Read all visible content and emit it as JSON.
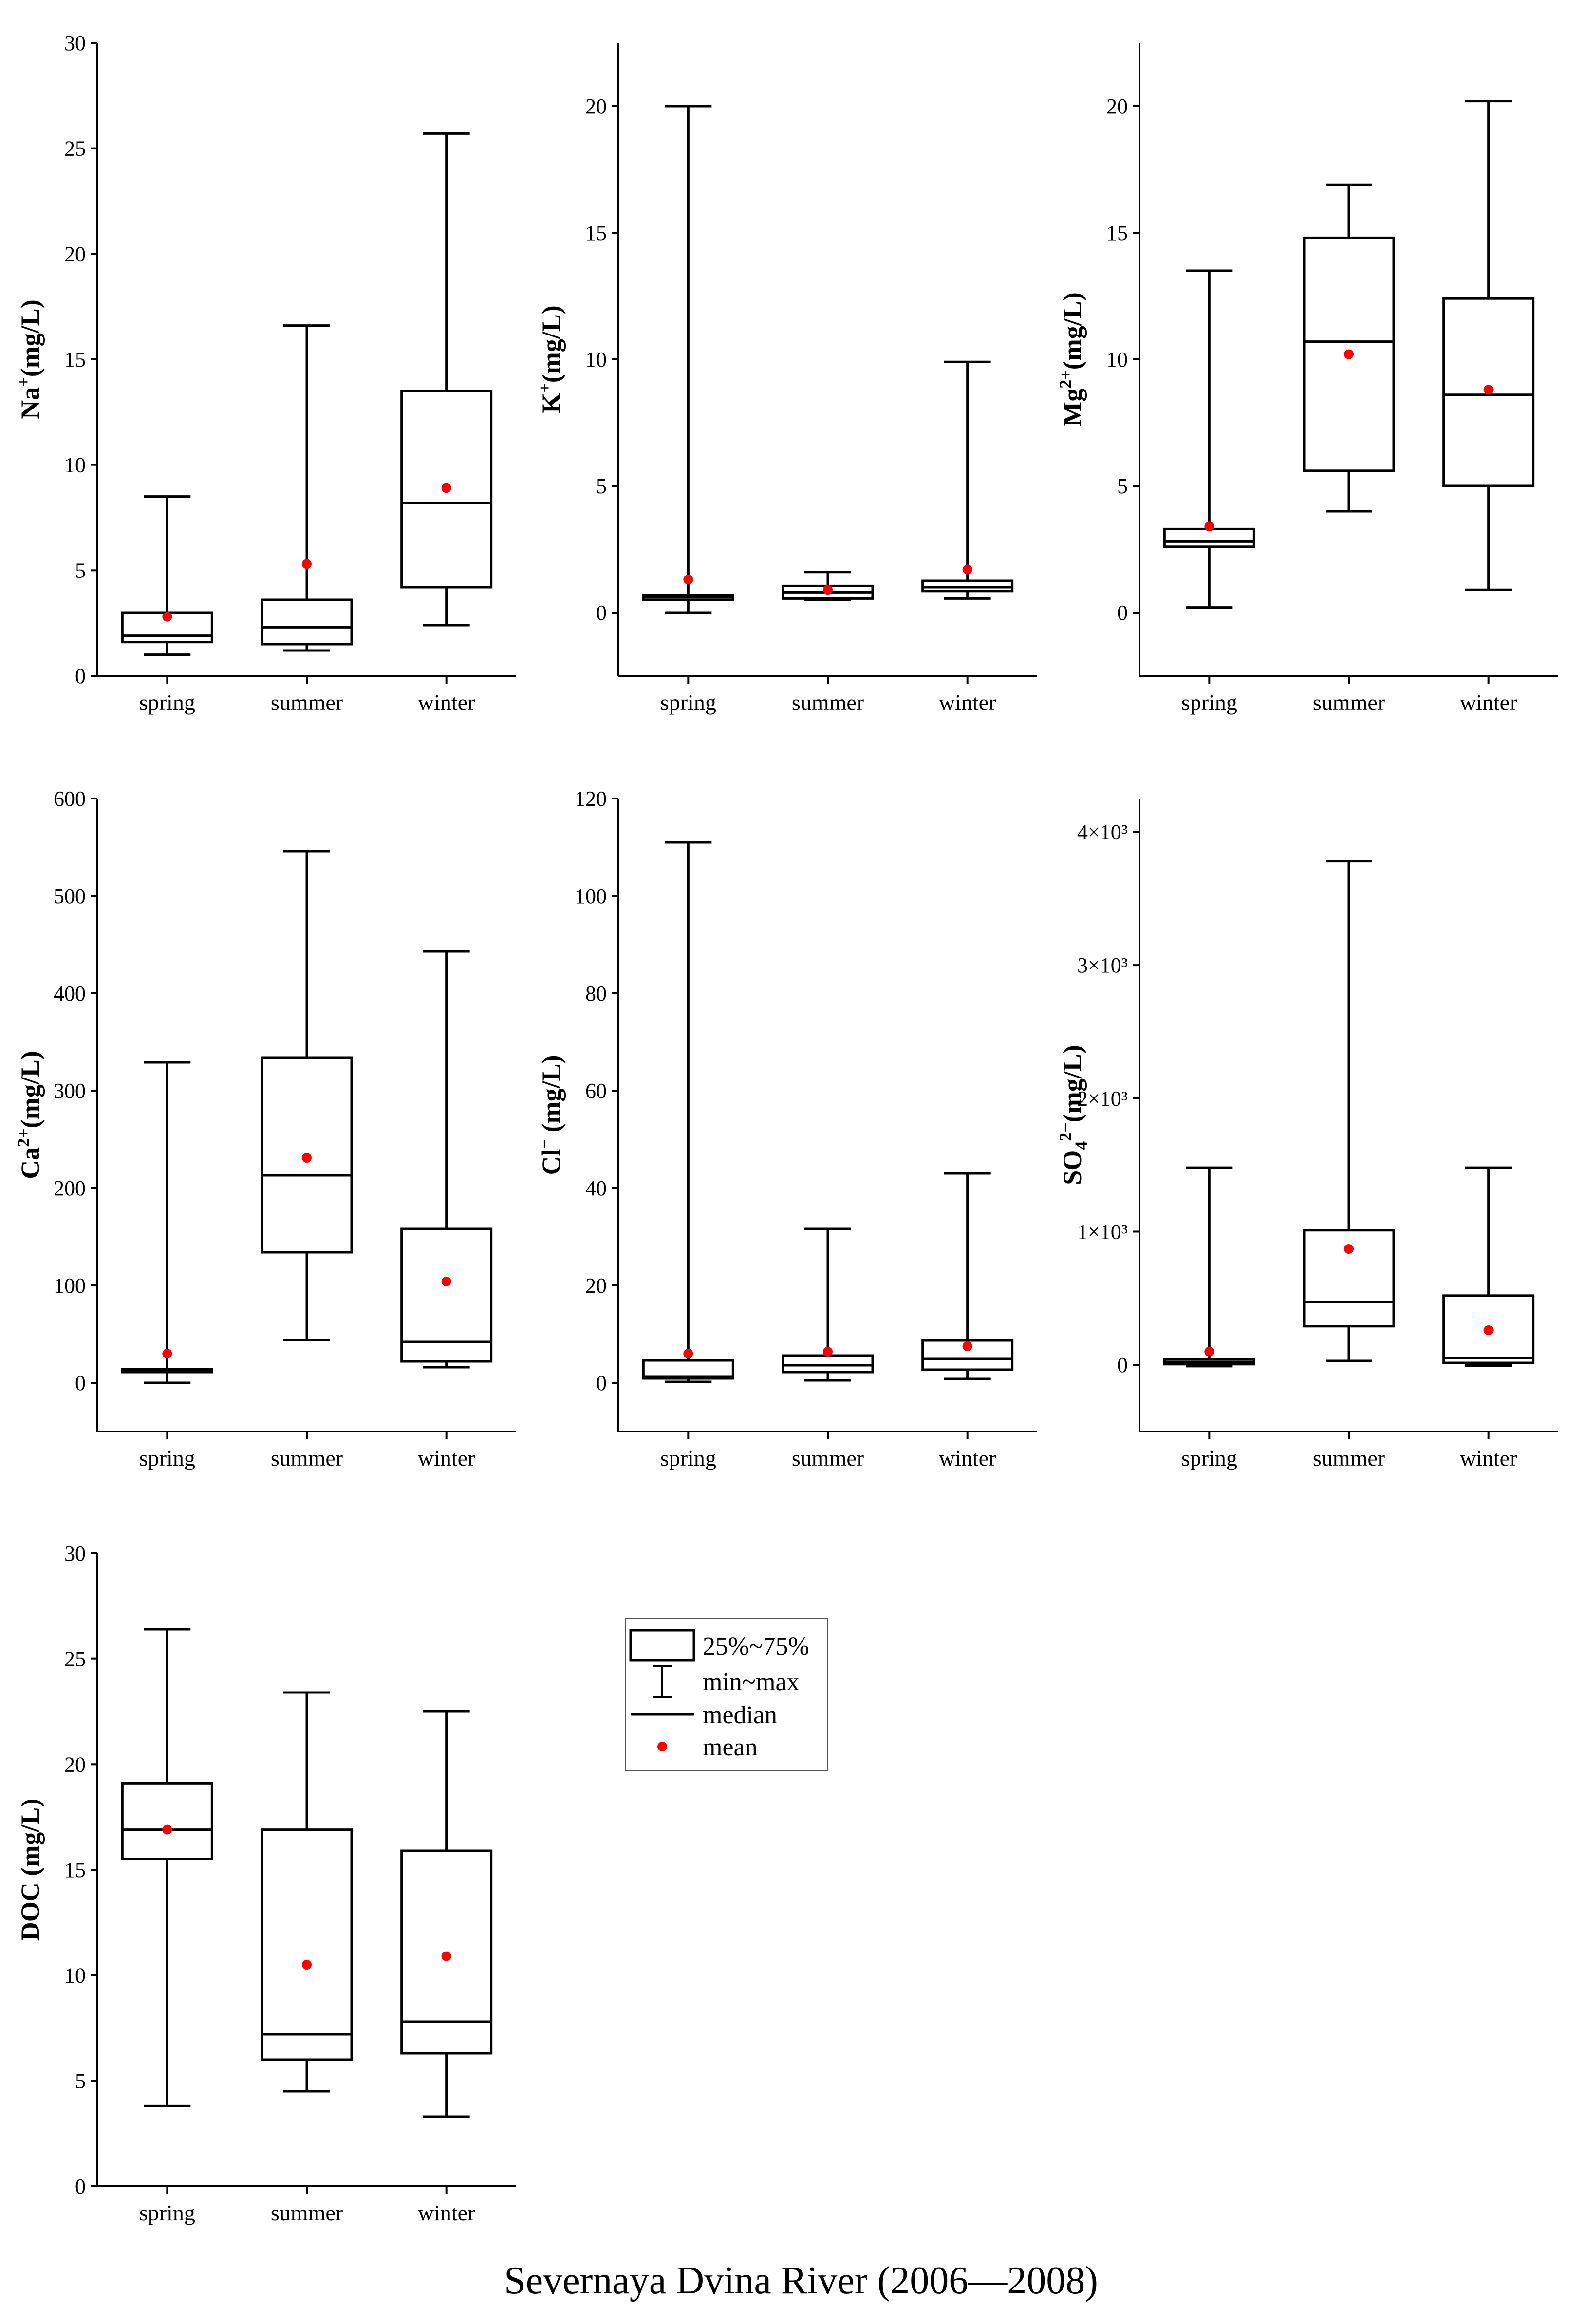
{
  "title": "Severnaya Dvina River (2006—2008)",
  "legend": {
    "entries": [
      {
        "key": "box",
        "label": "25%~75%"
      },
      {
        "key": "whisker",
        "label": "min~max"
      },
      {
        "key": "median",
        "label": "median"
      },
      {
        "key": "mean",
        "label": "mean"
      }
    ]
  },
  "colors": {
    "axis": "#000000",
    "mean": "#ff0000",
    "background": "#ffffff"
  },
  "chart_data": [
    {
      "type": "box",
      "ylabel_parts": [
        [
          "Na",
          null
        ],
        [
          "+",
          "sup"
        ],
        [
          "(mg/L)",
          null
        ]
      ],
      "categories": [
        "spring",
        "summer",
        "winter"
      ],
      "ylim": [
        0,
        30
      ],
      "yticks": [
        0,
        5,
        10,
        15,
        20,
        25,
        30
      ],
      "ytick_labels": [
        "0",
        "5",
        "10",
        "15",
        "20",
        "25",
        "30"
      ],
      "boxes": [
        {
          "min": 1.0,
          "q1": 1.6,
          "median": 1.9,
          "q3": 3.0,
          "max": 8.5,
          "mean": 2.8
        },
        {
          "min": 1.2,
          "q1": 1.5,
          "median": 2.3,
          "q3": 3.6,
          "max": 16.6,
          "mean": 5.3
        },
        {
          "min": 2.4,
          "q1": 4.2,
          "median": 8.2,
          "q3": 13.5,
          "max": 25.7,
          "mean": 8.9
        }
      ]
    },
    {
      "type": "box",
      "ylabel_parts": [
        [
          "K",
          null
        ],
        [
          "+",
          "sup"
        ],
        [
          "(mg/L)",
          null
        ]
      ],
      "categories": [
        "spring",
        "summer",
        "winter"
      ],
      "ylim": [
        -2.5,
        22.5
      ],
      "yticks": [
        0,
        5,
        10,
        15,
        20
      ],
      "ytick_labels": [
        "0",
        "5",
        "10",
        "15",
        "20"
      ],
      "boxes": [
        {
          "min": 0.0,
          "q1": 0.5,
          "median": 0.6,
          "q3": 0.7,
          "max": 20.0,
          "mean": 1.3
        },
        {
          "min": 0.5,
          "q1": 0.55,
          "median": 0.8,
          "q3": 1.05,
          "max": 1.6,
          "mean": 0.9
        },
        {
          "min": 0.55,
          "q1": 0.85,
          "median": 1.0,
          "q3": 1.25,
          "max": 9.9,
          "mean": 1.7
        }
      ]
    },
    {
      "type": "box",
      "ylabel_parts": [
        [
          "Mg",
          null
        ],
        [
          "2+",
          "sup"
        ],
        [
          "(mg/L)",
          null
        ]
      ],
      "categories": [
        "spring",
        "summer",
        "winter"
      ],
      "ylim": [
        -2.5,
        22.5
      ],
      "yticks": [
        0,
        5,
        10,
        15,
        20
      ],
      "ytick_labels": [
        "0",
        "5",
        "10",
        "15",
        "20"
      ],
      "boxes": [
        {
          "min": 0.2,
          "q1": 2.6,
          "median": 2.8,
          "q3": 3.3,
          "max": 13.5,
          "mean": 3.4
        },
        {
          "min": 4.0,
          "q1": 5.6,
          "median": 10.7,
          "q3": 14.8,
          "max": 16.9,
          "mean": 10.2
        },
        {
          "min": 0.9,
          "q1": 5.0,
          "median": 8.6,
          "q3": 12.4,
          "max": 20.2,
          "mean": 8.8
        }
      ]
    },
    {
      "type": "box",
      "ylabel_parts": [
        [
          "Ca",
          null
        ],
        [
          "2+",
          "sup"
        ],
        [
          "(mg/L)",
          null
        ]
      ],
      "categories": [
        "spring",
        "summer",
        "winter"
      ],
      "ylim": [
        -50,
        600
      ],
      "yticks": [
        0,
        100,
        200,
        300,
        400,
        500,
        600
      ],
      "ytick_labels": [
        "0",
        "100",
        "200",
        "300",
        "400",
        "500",
        "600"
      ],
      "boxes": [
        {
          "min": 0,
          "q1": 11,
          "median": 12,
          "q3": 14,
          "max": 329,
          "mean": 30
        },
        {
          "min": 44,
          "q1": 134,
          "median": 213,
          "q3": 334,
          "max": 546,
          "mean": 231
        },
        {
          "min": 16,
          "q1": 22,
          "median": 42,
          "q3": 158,
          "max": 443,
          "mean": 104
        }
      ]
    },
    {
      "type": "box",
      "ylabel_parts": [
        [
          "Cl",
          null
        ],
        [
          "−",
          "sup"
        ],
        [
          " (mg/L)",
          null
        ]
      ],
      "categories": [
        "spring",
        "summer",
        "winter"
      ],
      "ylim": [
        -10,
        120
      ],
      "yticks": [
        0,
        20,
        40,
        60,
        80,
        100,
        120
      ],
      "ytick_labels": [
        "0",
        "20",
        "40",
        "60",
        "80",
        "100",
        "120"
      ],
      "boxes": [
        {
          "min": 0.2,
          "q1": 0.9,
          "median": 1.3,
          "q3": 4.6,
          "max": 111,
          "mean": 6.0
        },
        {
          "min": 0.5,
          "q1": 2.2,
          "median": 3.6,
          "q3": 5.6,
          "max": 31.6,
          "mean": 6.4
        },
        {
          "min": 0.8,
          "q1": 2.7,
          "median": 4.9,
          "q3": 8.7,
          "max": 43.0,
          "mean": 7.5
        }
      ]
    },
    {
      "type": "box",
      "ylabel_parts": [
        [
          "SO",
          null
        ],
        [
          "4",
          "sub"
        ],
        [
          "2−",
          "sup"
        ],
        [
          "(mg/L)",
          null
        ]
      ],
      "categories": [
        "spring",
        "summer",
        "winter"
      ],
      "ylim": [
        -500,
        4250
      ],
      "yticks": [
        0,
        1000,
        2000,
        3000,
        4000
      ],
      "ytick_labels": [
        "0",
        "1×10³",
        "2×10³",
        "3×10³",
        "4×10³"
      ],
      "boxes": [
        {
          "min": -10,
          "q1": 5,
          "median": 20,
          "q3": 40,
          "max": 1480,
          "mean": 100
        },
        {
          "min": 30,
          "q1": 290,
          "median": 470,
          "q3": 1010,
          "max": 3780,
          "mean": 870
        },
        {
          "min": -5,
          "q1": 15,
          "median": 50,
          "q3": 520,
          "max": 1480,
          "mean": 260
        }
      ]
    },
    {
      "type": "box",
      "ylabel_parts": [
        [
          "DOC  (mg/L)",
          null
        ]
      ],
      "categories": [
        "spring",
        "summer",
        "winter"
      ],
      "ylim": [
        0,
        30
      ],
      "yticks": [
        0,
        5,
        10,
        15,
        20,
        25,
        30
      ],
      "ytick_labels": [
        "0",
        "5",
        "10",
        "15",
        "20",
        "25",
        "30"
      ],
      "boxes": [
        {
          "min": 3.8,
          "q1": 15.5,
          "median": 16.9,
          "q3": 19.1,
          "max": 26.4,
          "mean": 16.9
        },
        {
          "min": 4.5,
          "q1": 6.0,
          "median": 7.2,
          "q3": 16.9,
          "max": 23.4,
          "mean": 10.5
        },
        {
          "min": 3.3,
          "q1": 6.3,
          "median": 7.8,
          "q3": 15.9,
          "max": 22.5,
          "mean": 10.9
        }
      ]
    }
  ]
}
